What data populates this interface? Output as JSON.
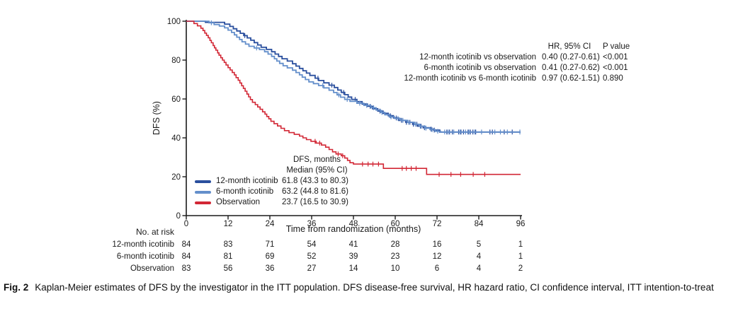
{
  "caption": {
    "label": "Fig. 2",
    "text": "Kaplan-Meier estimates of DFS by the investigator in the ITT population. DFS disease-free survival, HR hazard ratio, CI confidence interval, ITT intention-to-treat"
  },
  "chart_data": {
    "type": "line",
    "subtype": "kaplan-meier-step",
    "title": "",
    "xlabel": "Time from randomization (months)",
    "ylabel": "DFS (%)",
    "xlim": [
      0,
      96
    ],
    "ylim": [
      0,
      100
    ],
    "xticks": [
      0,
      12,
      24,
      36,
      48,
      60,
      72,
      84,
      96
    ],
    "yticks": [
      0,
      20,
      40,
      60,
      80,
      100
    ],
    "grid": false,
    "axis_color": "#1a1a1a",
    "hr_table": {
      "col1_header": "HR, 95% CI",
      "col2_header": "P value",
      "rows": [
        {
          "label": "12-month icotinib vs observation",
          "hr": "0.40 (0.27-0.61)",
          "p": "<0.001"
        },
        {
          "label": "6-month icotinib vs observation",
          "hr": "0.41 (0.27-0.62)",
          "p": "<0.001"
        },
        {
          "label": "12-month icotinib vs 6-month icotinib",
          "hr": "0.97 (0.62-1.51)",
          "p": "0.890"
        }
      ]
    },
    "legend": {
      "header_line1": "DFS, months",
      "header_line2": "Median (95% CI)",
      "items": [
        {
          "label": "12-month icotinib",
          "median": "61.8 (43.3 to 80.3)"
        },
        {
          "label": "6-month icotinib",
          "median": "63.2 (44.8 to 81.6)"
        },
        {
          "label": "Observation",
          "median": "23.7 (16.5 to 30.9)"
        }
      ]
    },
    "at_risk": {
      "title": "No. at risk",
      "times": [
        0,
        12,
        24,
        36,
        48,
        60,
        72,
        84,
        96
      ],
      "rows": [
        {
          "label": "12-month icotinib",
          "counts": [
            84,
            83,
            71,
            54,
            41,
            28,
            16,
            5,
            1
          ]
        },
        {
          "label": "6-month icotinib",
          "counts": [
            84,
            81,
            69,
            52,
            39,
            23,
            12,
            4,
            1
          ]
        },
        {
          "label": "Observation",
          "counts": [
            83,
            56,
            36,
            27,
            14,
            10,
            6,
            4,
            2
          ]
        }
      ]
    },
    "series": [
      {
        "name": "12-month icotinib",
        "color": "#2A4F9E",
        "median_months": "61.8 (43.3 to 80.3)",
        "steps": [
          [
            0,
            100
          ],
          [
            5.5,
            99.4
          ],
          [
            11,
            98.5
          ],
          [
            12.5,
            97.3
          ],
          [
            13.5,
            96.1
          ],
          [
            14.5,
            95
          ],
          [
            15.5,
            93.8
          ],
          [
            16.5,
            92.6
          ],
          [
            17.5,
            91.4
          ],
          [
            18.5,
            90.2
          ],
          [
            19.5,
            89
          ],
          [
            20.5,
            87.8
          ],
          [
            21.5,
            86.6
          ],
          [
            23,
            85.5
          ],
          [
            24.5,
            84.3
          ],
          [
            25.5,
            83.1
          ],
          [
            26.5,
            81.9
          ],
          [
            27.5,
            80.7
          ],
          [
            29,
            79.5
          ],
          [
            30.5,
            78.1
          ],
          [
            31.5,
            76.9
          ],
          [
            32.5,
            75.7
          ],
          [
            33.5,
            74.5
          ],
          [
            34.5,
            73.3
          ],
          [
            35.5,
            72.1
          ],
          [
            37,
            70.7
          ],
          [
            38,
            69.5
          ],
          [
            39.5,
            68.3
          ],
          [
            41,
            67.1
          ],
          [
            42.5,
            65.9
          ],
          [
            43.5,
            64.6
          ],
          [
            44.5,
            63.4
          ],
          [
            45.5,
            62.2
          ],
          [
            46.5,
            61
          ],
          [
            47.5,
            59.8
          ],
          [
            49,
            58.6
          ],
          [
            50.5,
            57.4
          ],
          [
            52,
            56.2
          ],
          [
            53.5,
            55
          ],
          [
            55,
            53.8
          ],
          [
            56.5,
            52.6
          ],
          [
            58,
            51.4
          ],
          [
            59.5,
            50.2
          ],
          [
            61,
            49
          ],
          [
            63,
            48
          ],
          [
            65,
            47
          ],
          [
            66.5,
            46
          ],
          [
            68,
            45.2
          ],
          [
            70,
            44.5
          ],
          [
            71,
            44
          ],
          [
            72.8,
            43
          ],
          [
            96,
            43
          ]
        ],
        "censors": [
          16.8,
          37.8,
          41.8,
          45.2,
          48.5,
          52.8,
          55.6,
          58.6,
          60.3,
          61.8,
          63.2,
          64.2,
          65.2,
          66.2,
          67.4,
          68.4,
          70.3,
          71.2,
          74.8,
          75.6,
          76.4,
          78.2,
          78.9,
          79.6,
          80.9,
          81.6,
          82.3,
          83.1,
          87.2,
          87.9,
          91.3,
          93.6
        ]
      },
      {
        "name": "6-month icotinib",
        "color": "#648FCB",
        "median_months": "63.2 (44.8 to 81.6)",
        "steps": [
          [
            0,
            100
          ],
          [
            6.5,
            99.2
          ],
          [
            8,
            98.3
          ],
          [
            9.5,
            97.5
          ],
          [
            11,
            96.6
          ],
          [
            12,
            95.4
          ],
          [
            13,
            94.2
          ],
          [
            13.8,
            93
          ],
          [
            14.5,
            91.8
          ],
          [
            15.3,
            90.6
          ],
          [
            16,
            89.4
          ],
          [
            17,
            88.2
          ],
          [
            18,
            87.1
          ],
          [
            19.5,
            86.2
          ],
          [
            21,
            85.4
          ],
          [
            22.5,
            84.3
          ],
          [
            23.5,
            83.1
          ],
          [
            24.5,
            81.9
          ],
          [
            25.3,
            80.7
          ],
          [
            26,
            79.5
          ],
          [
            26.8,
            78.3
          ],
          [
            27.8,
            77.1
          ],
          [
            29,
            76
          ],
          [
            30.5,
            74.8
          ],
          [
            31.5,
            73.6
          ],
          [
            32.5,
            72.4
          ],
          [
            33.3,
            71.2
          ],
          [
            34.2,
            70
          ],
          [
            35.2,
            68.8
          ],
          [
            36.5,
            67.9
          ],
          [
            38,
            66.9
          ],
          [
            39.5,
            65.7
          ],
          [
            41,
            64.5
          ],
          [
            42.3,
            63.3
          ],
          [
            43.3,
            62.1
          ],
          [
            44.3,
            60.9
          ],
          [
            45.5,
            59.8
          ],
          [
            47,
            58.8
          ],
          [
            49,
            57.8
          ],
          [
            51,
            56.7
          ],
          [
            53,
            55.5
          ],
          [
            54.5,
            54.3
          ],
          [
            55.8,
            53.1
          ],
          [
            57,
            51.9
          ],
          [
            58.3,
            50.8
          ],
          [
            59.8,
            50
          ],
          [
            61.5,
            49
          ],
          [
            63.5,
            48
          ],
          [
            65.5,
            47
          ],
          [
            67,
            46
          ],
          [
            68.5,
            45
          ],
          [
            70,
            44.2
          ],
          [
            71.5,
            43.4
          ],
          [
            73,
            43
          ],
          [
            96,
            43
          ]
        ],
        "censors": [
          7.2,
          20.2,
          39.2,
          43.8,
          46.2,
          49.8,
          51.8,
          53.8,
          56.2,
          58.8,
          60.8,
          62.2,
          63.8,
          65.8,
          67.2,
          68.8,
          70.6,
          72.2,
          74.2,
          75.2,
          76.8,
          78.6,
          80.2,
          81.2,
          82.8,
          84.8,
          88.6,
          90.2,
          92.2,
          95.8
        ]
      },
      {
        "name": "Observation",
        "color": "#D22735",
        "median_months": "23.7 (16.5 to 30.9)",
        "steps": [
          [
            0,
            100
          ],
          [
            2.2,
            98.8
          ],
          [
            3.2,
            97.6
          ],
          [
            4.2,
            96.4
          ],
          [
            4.8,
            95.2
          ],
          [
            5.3,
            93.9
          ],
          [
            5.8,
            92.7
          ],
          [
            6.3,
            91.5
          ],
          [
            6.8,
            90.1
          ],
          [
            7.2,
            88.9
          ],
          [
            7.7,
            87.5
          ],
          [
            8.1,
            86.3
          ],
          [
            8.5,
            85.1
          ],
          [
            9,
            83.7
          ],
          [
            9.4,
            82.5
          ],
          [
            9.9,
            81.2
          ],
          [
            10.4,
            80
          ],
          [
            10.9,
            78.8
          ],
          [
            11.4,
            77.5
          ],
          [
            12,
            76.1
          ],
          [
            12.6,
            74.9
          ],
          [
            13.2,
            73.6
          ],
          [
            13.8,
            72.4
          ],
          [
            14.3,
            71
          ],
          [
            14.9,
            69.6
          ],
          [
            15.4,
            68.2
          ],
          [
            15.9,
            66.8
          ],
          [
            16.4,
            65.4
          ],
          [
            16.9,
            64
          ],
          [
            17.4,
            62.5
          ],
          [
            17.9,
            61.1
          ],
          [
            18.4,
            59.7
          ],
          [
            19,
            58.3
          ],
          [
            19.8,
            57.1
          ],
          [
            20.5,
            55.9
          ],
          [
            21.2,
            54.7
          ],
          [
            21.9,
            53.4
          ],
          [
            22.6,
            52.2
          ],
          [
            23.1,
            51
          ],
          [
            23.7,
            49.8
          ],
          [
            24.3,
            48.5
          ],
          [
            25.2,
            47.3
          ],
          [
            26.2,
            46.1
          ],
          [
            27.2,
            44.9
          ],
          [
            28.2,
            43.7
          ],
          [
            29.5,
            42.7
          ],
          [
            31,
            41.8
          ],
          [
            32.5,
            40.9
          ],
          [
            33.5,
            40
          ],
          [
            34.5,
            39.1
          ],
          [
            35.8,
            38.2
          ],
          [
            37.3,
            37.3
          ],
          [
            38.8,
            36.3
          ],
          [
            40,
            35.2
          ],
          [
            41,
            34
          ],
          [
            42,
            32.8
          ],
          [
            43,
            31.7
          ],
          [
            44.5,
            30.8
          ],
          [
            45.5,
            29.6
          ],
          [
            46.3,
            28.4
          ],
          [
            47,
            27.2
          ],
          [
            48,
            26.5
          ],
          [
            56.6,
            24.3
          ],
          [
            69,
            21.2
          ],
          [
            96,
            21.2
          ]
        ],
        "censors": [
          37,
          38.3,
          43.6,
          44.9,
          50.6,
          52.2,
          53.6,
          55.2,
          62,
          63.2,
          64.6,
          66,
          72.6,
          76,
          78.8,
          82.4,
          85.7
        ]
      }
    ]
  }
}
